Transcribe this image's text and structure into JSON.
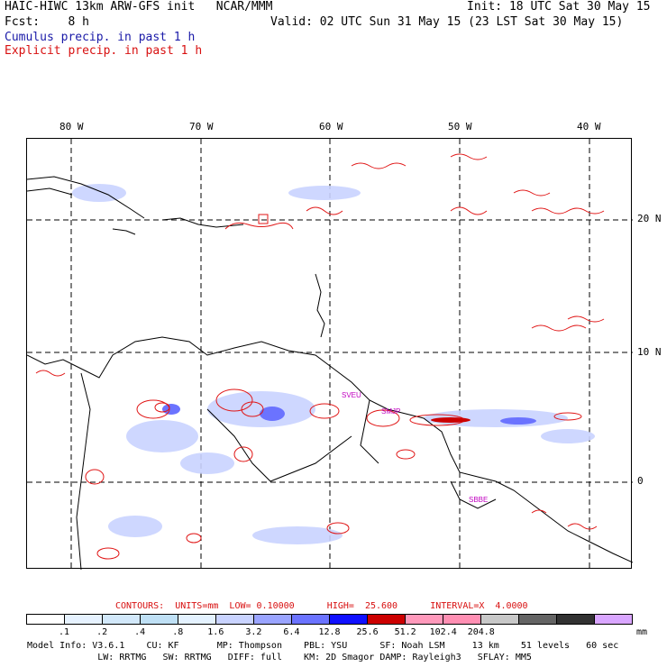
{
  "header": {
    "line1_left": "HAIC-HIWC 13km ARW-GFS init   NCAR/MMM",
    "line1_right": "Init: 18 UTC Sat 30 May 15",
    "line2_left": "Fcst:    8 h",
    "line2_right": "Valid: 02 UTC Sun 31 May 15 (23 LST Sat 30 May 15)",
    "legend_cumulus": "Cumulus precip. in past 1 h",
    "legend_explicit": "Explicit precip. in past 1 h"
  },
  "axes": {
    "longitudes": [
      "80 W",
      "70 W",
      "60 W",
      "50 W",
      "40 W"
    ],
    "latitudes": [
      "20 N",
      "10 N",
      "0"
    ]
  },
  "stations": [
    "SVEU",
    "SMJP",
    "SBBE"
  ],
  "contours": {
    "label": "CONTOURS:  UNITS=mm  LOW= 0.10000      HIGH=  25.600      INTERVAL=X  4.0000"
  },
  "colorbar": {
    "colors": [
      "#ffffff",
      "#e6f2ff",
      "#d2e8fa",
      "#bfe0f5",
      "#e4f2ff",
      "#c9d3ff",
      "#9aa4ff",
      "#6b73ff",
      "#1010ff",
      "#cc0000",
      "#ff99bb",
      "#ff8fb3",
      "#c8c8c8",
      "#646464",
      "#323232",
      "#d9a6ff"
    ],
    "ticks": [
      ".1",
      ".2",
      ".4",
      ".8",
      "1.6",
      "3.2",
      "6.4",
      "12.8",
      "25.6",
      "51.2",
      "102.4",
      "204.8"
    ],
    "unit": "mm"
  },
  "model_info": {
    "line1": "Model Info: V3.6.1    CU: KF       MP: Thompson    PBL: YSU      SF: Noah LSM     13 km    51 levels   60 sec",
    "line2": "             LW: RRTMG   SW: RRTMG   DIFF: full    KM: 2D Smagor DAMP: Rayleigh3   SFLAY: MM5"
  },
  "colors": {
    "explicit_contour": "#e01515",
    "cumulus_shade": "#8a95ff",
    "coastline": "#000000",
    "station": "#c000c0"
  }
}
